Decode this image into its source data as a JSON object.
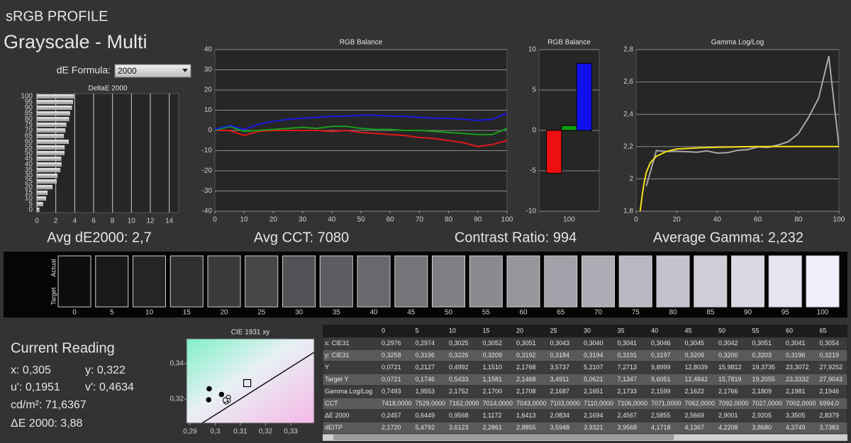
{
  "header": {
    "profile": "sRGB PROFILE",
    "title": "Grayscale - Multi",
    "formula_label": "dE Formula:",
    "formula_value": "2000"
  },
  "chart_data": [
    {
      "type": "bar",
      "orientation": "horizontal",
      "title": "DeltaE 2000",
      "categories": [
        0,
        5,
        10,
        15,
        20,
        25,
        30,
        35,
        40,
        45,
        50,
        55,
        60,
        65,
        70,
        75,
        80,
        85,
        90,
        95,
        100
      ],
      "values": [
        0.25,
        0.64,
        0.96,
        1.12,
        1.64,
        2.08,
        2.17,
        2.46,
        2.59,
        2.57,
        2.9,
        2.92,
        3.35,
        2.84,
        3.0,
        3.1,
        3.4,
        3.5,
        3.7,
        3.8,
        3.9
      ],
      "color": "#d8d8d8",
      "xlim": [
        0,
        15
      ],
      "xticks": [
        0,
        2,
        4,
        6,
        8,
        10,
        12,
        14
      ],
      "grid": true,
      "summary": "Avg dE2000: 2,7"
    },
    {
      "type": "line",
      "title": "RGB Balance",
      "x": [
        0,
        5,
        10,
        15,
        20,
        25,
        30,
        35,
        40,
        45,
        50,
        55,
        60,
        65,
        70,
        75,
        80,
        85,
        90,
        95,
        100
      ],
      "series": [
        {
          "color": "#e01818",
          "values": [
            0,
            0,
            -2.5,
            -0.5,
            0,
            0,
            0,
            0,
            -0.5,
            0,
            -1,
            -1.5,
            -2,
            -2.5,
            -3.5,
            -4,
            -5,
            -6,
            -8,
            -7,
            -5
          ]
        },
        {
          "color": "#18a018",
          "values": [
            0,
            2,
            -0.5,
            0,
            0.5,
            1,
            1.5,
            1,
            2,
            2,
            1,
            0.5,
            0.5,
            0,
            0,
            -0.5,
            -1,
            -1.5,
            -2,
            -2,
            1
          ]
        },
        {
          "color": "#1818e0",
          "values": [
            0.5,
            2.5,
            0.5,
            3,
            4.5,
            5.5,
            6,
            6.5,
            7,
            7,
            7.5,
            7.5,
            7,
            7,
            6.5,
            6,
            6,
            5.5,
            5,
            5.5,
            8.5
          ]
        }
      ],
      "xlim": [
        0,
        100
      ],
      "xticks": [
        0,
        10,
        20,
        30,
        40,
        50,
        60,
        70,
        80,
        90,
        100
      ],
      "ylim": [
        -40,
        40
      ],
      "yticks": [
        -40,
        -30,
        -20,
        -10,
        0,
        10,
        20,
        30,
        40
      ],
      "grid": true,
      "summary": "Avg CCT: 7080"
    },
    {
      "type": "bar",
      "title": "RGB Balance",
      "categories": [
        100
      ],
      "series": [
        {
          "color": "#ee1010",
          "values": [
            -5.3
          ]
        },
        {
          "color": "#10a010",
          "values": [
            0.6
          ]
        },
        {
          "color": "#1010ee",
          "values": [
            8.3
          ]
        }
      ],
      "ylim": [
        -10,
        10
      ],
      "yticks": [
        -10,
        -5,
        0,
        5,
        10
      ],
      "grid": true,
      "summary": "Contrast Ratio: 994"
    },
    {
      "type": "line",
      "title": "Gamma Log/Log",
      "series": [
        {
          "color": "#a8a8a8",
          "x": [
            5,
            10,
            15,
            20,
            25,
            30,
            35,
            40,
            45,
            50,
            55,
            60,
            65,
            70,
            75,
            80,
            85,
            90,
            95,
            100
          ],
          "values": [
            1.9553,
            2.1752,
            2.17,
            2.1708,
            2.1687,
            2.1651,
            2.1733,
            2.1599,
            2.1622,
            2.1766,
            2.1809,
            2.1981,
            2.1946,
            2.21,
            2.23,
            2.28,
            2.38,
            2.5,
            2.76,
            2.2
          ]
        },
        {
          "color": "#f2e21a",
          "x": [
            2,
            3,
            4,
            5,
            7,
            10,
            15,
            20,
            30,
            40,
            60,
            80,
            100
          ],
          "values": [
            1.8,
            1.9,
            1.98,
            2.04,
            2.1,
            2.14,
            2.17,
            2.185,
            2.192,
            2.196,
            2.2,
            2.2,
            2.2
          ]
        }
      ],
      "xlim": [
        0,
        100
      ],
      "xticks": [
        0,
        20,
        40,
        60,
        80,
        100
      ],
      "ylim": [
        1.8,
        2.8
      ],
      "yticks": [
        {
          "value": 1.8,
          "label": "1,8"
        },
        2,
        {
          "value": 2.2,
          "label": "2,2"
        },
        {
          "value": 2.4,
          "label": "2,4"
        },
        {
          "value": 2.6,
          "label": "2,6"
        },
        {
          "value": 2.8,
          "label": "2,8"
        }
      ],
      "grid": true,
      "summary": "Average Gamma: 2,232"
    },
    {
      "type": "scatter",
      "title": "CIE 1931 xy",
      "series": [
        {
          "color": "#000000",
          "marker": "circle",
          "x": [
            0.2976,
            0.2974,
            0.3025,
            0.3052,
            0.3051,
            0.3043,
            0.304
          ],
          "values": [
            0.3258,
            0.3196,
            0.3226,
            0.3209,
            0.3192,
            0.3184,
            0.3194
          ]
        },
        {
          "color": "#000000",
          "marker": "square",
          "x": [
            0.3127
          ],
          "values": [
            0.329
          ]
        }
      ],
      "xlim": [
        0.2886,
        0.3393
      ],
      "xticks": [
        {
          "value": 0.29,
          "label": "0,29"
        },
        {
          "value": 0.3,
          "label": "0,3"
        },
        {
          "value": 0.31,
          "label": "0,31"
        },
        {
          "value": 0.32,
          "label": "0,32"
        },
        {
          "value": 0.33,
          "label": "0,33"
        }
      ],
      "ylim": [
        0.3064,
        0.354
      ],
      "yticks": [
        {
          "value": 0.32,
          "label": "0,32"
        },
        {
          "value": 0.34,
          "label": "0,34"
        }
      ],
      "grid": false
    }
  ],
  "swatches": {
    "row_labels": [
      "Actual",
      "Target"
    ],
    "levels": [
      0,
      5,
      10,
      15,
      20,
      25,
      30,
      35,
      40,
      45,
      50,
      55,
      60,
      65,
      70,
      75,
      80,
      85,
      90,
      95,
      100
    ]
  },
  "readings": {
    "title": "Current Reading",
    "items": [
      "x: 0,305",
      "y: 0,322",
      "u': 0,1951",
      "v': 0,4634",
      "cd/m²: 71,6367",
      "ΔE 2000: 3,88"
    ]
  },
  "table": {
    "columns": [
      "0",
      "5",
      "10",
      "15",
      "20",
      "25",
      "30",
      "35",
      "40",
      "45",
      "50",
      "55",
      "60",
      "65"
    ],
    "rows": [
      {
        "label": "x: CIE31",
        "cells": [
          "0,2976",
          "0,2974",
          "0,3025",
          "0,3052",
          "0,3051",
          "0,3043",
          "0,3040",
          "0,3041",
          "0,3046",
          "0,3045",
          "0,3042",
          "0,3051",
          "0,3041",
          "0,3054"
        ]
      },
      {
        "label": "y: CIE31",
        "cells": [
          "0,3258",
          "0,3196",
          "0,3226",
          "0,3209",
          "0,3192",
          "0,3184",
          "0,3194",
          "0,3191",
          "0,3197",
          "0,3209",
          "0,3200",
          "0,3203",
          "0,3196",
          "0,3219"
        ]
      },
      {
        "label": "Y",
        "cells": [
          "0,0721",
          "0,2127",
          "0,4992",
          "1,1510",
          "2,1768",
          "3,5737",
          "5,2107",
          "7,2713",
          "9,8999",
          "12,8039",
          "15,9812",
          "19,3735",
          "23,3072",
          "27,9252"
        ]
      },
      {
        "label": "Target Y",
        "cells": [
          "0,0721",
          "0,1746",
          "0,5433",
          "1,1581",
          "2,1468",
          "3,4911",
          "5,0621",
          "7,1347",
          "9,6051",
          "12,4842",
          "15,7819",
          "19,2055",
          "23,3332",
          "27,9043"
        ]
      },
      {
        "label": "Gamma Log/Log",
        "cells": [
          "0,7493",
          "1,9553",
          "2,1752",
          "2,1700",
          "2,1708",
          "2,1687",
          "2,1651",
          "2,1733",
          "2,1599",
          "2,1622",
          "2,1766",
          "2,1809",
          "2,1981",
          "2,1946"
        ]
      },
      {
        "label": "CCT",
        "cells": [
          "7418,0000",
          "7529,0000",
          "7162,0000",
          "7014,0000",
          "7043,0000",
          "7103,0000",
          "7110,0000",
          "7106,0000",
          "7071,0000",
          "7062,0000",
          "7092,0000",
          "7027,0000",
          "7002,0000",
          "6994,0"
        ]
      },
      {
        "label": "ΔE 2000",
        "cells": [
          "0,2457",
          "0,6449",
          "0,9568",
          "1,1172",
          "1,6413",
          "2,0834",
          "2,1694",
          "2,4567",
          "2,5855",
          "2,5669",
          "2,9001",
          "2,9205",
          "3,3505",
          "2,8379"
        ]
      },
      {
        "label": "dEITP",
        "cells": [
          "2,1720",
          "5,4792",
          "3,6123",
          "2,2861",
          "2,8855",
          "3,5948",
          "3,9321",
          "3,9568",
          "4,1718",
          "4,1367",
          "4,2208",
          "3,8680",
          "4,3749",
          "3,7383"
        ]
      }
    ]
  }
}
